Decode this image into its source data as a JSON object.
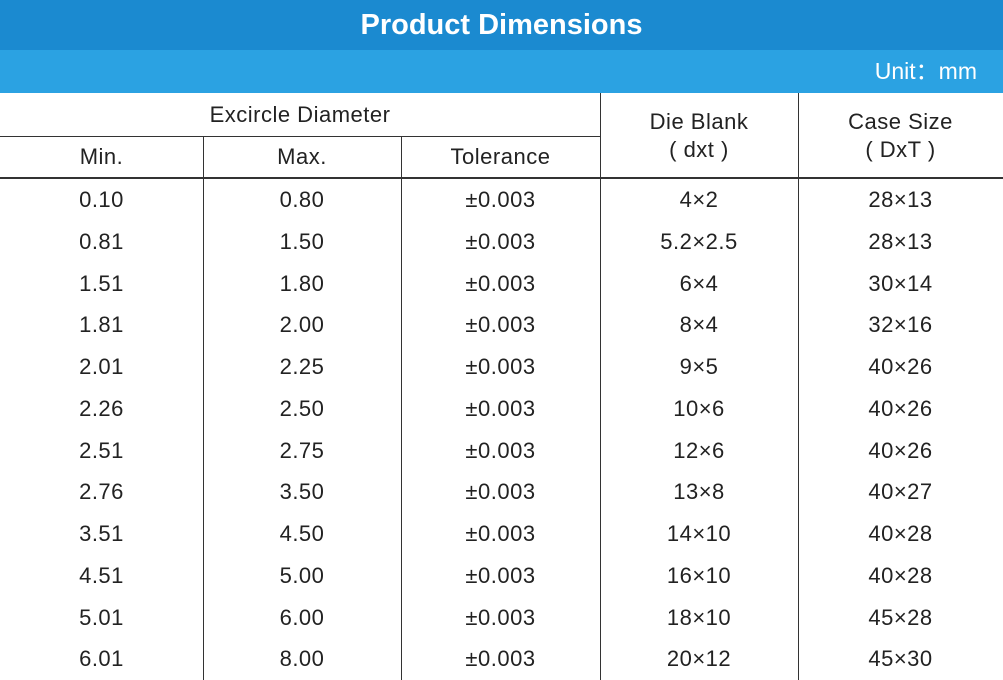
{
  "header": {
    "title": "Product Dimensions",
    "unit": "Unit：mm"
  },
  "table": {
    "group_header": "Excircle Diameter",
    "columns": [
      "Min.",
      "Max.",
      "Tolerance"
    ],
    "die_blank": [
      "Die Blank",
      "( dxt )"
    ],
    "case_size": [
      "Case Size",
      "( DxT )"
    ],
    "rows": [
      [
        "0.10",
        "0.80",
        "±0.003",
        "4×2",
        "28×13"
      ],
      [
        "0.81",
        "1.50",
        "±0.003",
        "5.2×2.5",
        "28×13"
      ],
      [
        "1.51",
        "1.80",
        "±0.003",
        "6×4",
        "30×14"
      ],
      [
        "1.81",
        "2.00",
        "±0.003",
        "8×4",
        "32×16"
      ],
      [
        "2.01",
        "2.25",
        "±0.003",
        "9×5",
        "40×26"
      ],
      [
        "2.26",
        "2.50",
        "±0.003",
        "10×6",
        "40×26"
      ],
      [
        "2.51",
        "2.75",
        "±0.003",
        "12×6",
        "40×26"
      ],
      [
        "2.76",
        "3.50",
        "±0.003",
        "13×8",
        "40×27"
      ],
      [
        "3.51",
        "4.50",
        "±0.003",
        "14×10",
        "40×28"
      ],
      [
        "4.51",
        "5.00",
        "±0.003",
        "16×10",
        "40×28"
      ],
      [
        "5.01",
        "6.00",
        "±0.003",
        "18×10",
        "45×28"
      ],
      [
        "6.01",
        "8.00",
        "±0.003",
        "20×12",
        "45×30"
      ]
    ]
  }
}
